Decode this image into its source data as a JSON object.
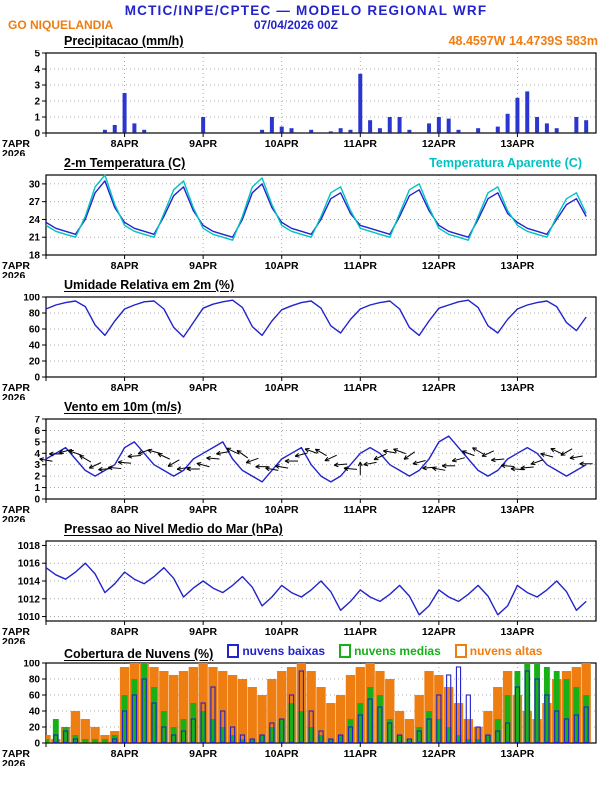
{
  "header": {
    "title": "MCTIC/INPE/CPTEC — MODELO REGIONAL WRF",
    "station": "GO NIQUELANDIA",
    "run": "07/04/2026 00Z",
    "location": "48.4597W 14.4739S 583m"
  },
  "colors": {
    "blue": "#2323cc",
    "orange": "#ee7d12",
    "cyan": "#00c2c2",
    "green": "#17b117",
    "bar_blue": "#2a36cf",
    "axis": "#000000",
    "grid": "#999999"
  },
  "x_axis": {
    "hours_total": 168,
    "step_hours": 3,
    "day_tick_hours": [
      0,
      24,
      48,
      72,
      96,
      120,
      144
    ],
    "day_labels": [
      "7APR",
      "8APR",
      "9APR",
      "10APR",
      "11APR",
      "12APR",
      "13APR"
    ],
    "year_label": "2026"
  },
  "chart_data": [
    {
      "id": "precipitation",
      "type": "bar",
      "title": "Precipitacao (mm/h)",
      "ylim": [
        0,
        5
      ],
      "yticks": [
        0,
        1,
        2,
        3,
        4,
        5
      ],
      "series": [
        {
          "name": "precipitacao",
          "color_key": "bar_blue",
          "values": [
            0,
            0,
            0,
            0,
            0,
            0,
            0.2,
            0.5,
            2.5,
            0.6,
            0.2,
            0,
            0,
            0,
            0,
            0,
            1,
            0,
            0,
            0,
            0,
            0,
            0.2,
            1,
            0.4,
            0.3,
            0,
            0.2,
            0,
            0.1,
            0.3,
            0.2,
            3.7,
            0.8,
            0.3,
            1,
            1,
            0.2,
            0,
            0.6,
            1,
            0.9,
            0.2,
            0,
            0.3,
            0,
            0.4,
            1.2,
            2.2,
            2.6,
            1,
            0.6,
            0.3,
            0,
            1,
            0.8
          ]
        }
      ]
    },
    {
      "id": "temperature",
      "type": "line",
      "title": "2-m Temperatura (C)",
      "legend": "Temperatura Aparente (C)",
      "ylim": [
        18,
        31.5
      ],
      "yticks": [
        18,
        21,
        24,
        27,
        30
      ],
      "series": [
        {
          "name": "temperatura_2m",
          "color_key": "blue",
          "values": [
            23.5,
            22.5,
            22,
            21.5,
            24,
            28.5,
            30.5,
            26,
            23.5,
            22.5,
            22,
            21.5,
            24.5,
            28,
            29.5,
            25.5,
            23,
            22,
            21.5,
            21,
            24,
            28.5,
            30,
            26,
            23.5,
            22.5,
            22,
            21.5,
            24,
            27.5,
            28.5,
            25,
            23,
            22.5,
            22,
            21.5,
            24.5,
            28,
            29,
            25.5,
            23,
            22,
            21.5,
            21,
            24,
            27.5,
            28.5,
            25,
            23.5,
            22.5,
            22,
            21.5,
            24,
            26.5,
            27.5,
            24.5
          ]
        },
        {
          "name": "temperatura_aparente",
          "color_key": "cyan",
          "values": [
            23,
            22,
            21.5,
            21,
            24.5,
            29.5,
            31.5,
            26.5,
            23,
            22,
            21.5,
            21,
            25,
            29,
            30.5,
            26,
            22.5,
            21.5,
            21,
            20.5,
            24.5,
            29.5,
            31,
            26.5,
            23,
            22,
            21.5,
            21,
            24.5,
            28.5,
            29.5,
            25.5,
            22.5,
            22,
            21.5,
            21,
            25,
            29,
            30,
            26,
            22.5,
            21.5,
            21,
            20.5,
            24.5,
            28.5,
            29.5,
            25.5,
            23,
            22,
            21.5,
            21,
            24.5,
            27.5,
            28.5,
            25
          ]
        }
      ]
    },
    {
      "id": "humidity",
      "type": "line",
      "title": "Umidade Relativa em 2m (%)",
      "ylim": [
        0,
        100
      ],
      "yticks": [
        0,
        20,
        40,
        60,
        80,
        100
      ],
      "series": [
        {
          "name": "umidade_relativa_2m",
          "color_key": "blue",
          "values": [
            85,
            90,
            93,
            95,
            88,
            65,
            52,
            70,
            85,
            90,
            94,
            95,
            85,
            62,
            50,
            68,
            86,
            91,
            94,
            96,
            87,
            63,
            52,
            70,
            84,
            89,
            93,
            95,
            86,
            64,
            55,
            72,
            85,
            90,
            93,
            95,
            85,
            62,
            52,
            70,
            86,
            90,
            94,
            96,
            87,
            64,
            55,
            72,
            85,
            90,
            93,
            95,
            88,
            68,
            58,
            75
          ]
        }
      ]
    },
    {
      "id": "wind",
      "type": "line",
      "title": "Vento em 10m (m/s)",
      "ylim": [
        0,
        7
      ],
      "yticks": [
        0,
        1,
        2,
        3,
        4,
        5,
        6,
        7
      ],
      "wind_dirs_deg": [
        170,
        180,
        195,
        160,
        150,
        205,
        185,
        175,
        175,
        185,
        200,
        165,
        155,
        210,
        190,
        180,
        165,
        175,
        190,
        155,
        145,
        200,
        180,
        170,
        170,
        180,
        195,
        160,
        150,
        205,
        185,
        175,
        90,
        190,
        205,
        170,
        160,
        215,
        195,
        185,
        170,
        180,
        195,
        160,
        150,
        205,
        185,
        175,
        175,
        185,
        200,
        165,
        155,
        210,
        190,
        180
      ],
      "series": [
        {
          "name": "vento_10m",
          "color_key": "blue",
          "values": [
            3.5,
            4,
            4.5,
            3.5,
            2.5,
            2,
            2.5,
            3,
            4.5,
            5,
            4,
            3,
            2.5,
            2,
            2.5,
            3.5,
            4,
            4.5,
            5,
            3.5,
            2.5,
            2,
            1.5,
            2.5,
            3.5,
            4,
            4.5,
            3,
            2,
            1.5,
            2,
            3,
            4,
            4.5,
            4,
            3,
            2.5,
            2,
            2.5,
            3.5,
            5,
            5.5,
            4.5,
            3.5,
            2.5,
            2,
            2.5,
            3.5,
            4,
            4.5,
            4,
            3,
            2.5,
            2,
            2.5,
            3
          ]
        }
      ]
    },
    {
      "id": "pressure",
      "type": "line",
      "title": "Pressao ao Nivel Medio do Mar (hPa)",
      "ylim": [
        1009.5,
        1018.5
      ],
      "yticks": [
        1010,
        1012,
        1014,
        1016,
        1018
      ],
      "series": [
        {
          "name": "pressao_nivel_mar",
          "color_key": "blue",
          "values": [
            1015.5,
            1014.7,
            1014.2,
            1015,
            1016,
            1014.8,
            1012.7,
            1013.7,
            1015,
            1014.2,
            1013.7,
            1014.5,
            1015.5,
            1014.3,
            1012.2,
            1013.2,
            1014,
            1013.2,
            1012.7,
            1013.5,
            1014.5,
            1013.3,
            1011.2,
            1012.2,
            1013.5,
            1012.7,
            1012.2,
            1013,
            1014,
            1012.8,
            1010.7,
            1011.7,
            1013,
            1012.2,
            1011.7,
            1012.5,
            1013.5,
            1012.3,
            1010.2,
            1011.2,
            1013,
            1012.2,
            1011.7,
            1012.5,
            1013.5,
            1012.3,
            1010.2,
            1011.2,
            1013.5,
            1012.7,
            1012.2,
            1013,
            1014,
            1012.8,
            1010.7,
            1011.7
          ]
        }
      ]
    },
    {
      "id": "clouds",
      "type": "multibar",
      "title": "Cobertura de Nuvens (%)",
      "ylim": [
        0,
        100
      ],
      "yticks": [
        0,
        20,
        40,
        60,
        80,
        100
      ],
      "legend": [
        {
          "label": "nuvens baixas",
          "color_key": "blue"
        },
        {
          "label": "nuvens medias",
          "color_key": "green"
        },
        {
          "label": "nuvens altas",
          "color_key": "orange"
        }
      ],
      "series": [
        {
          "name": "nuvens_altas",
          "color_key": "orange",
          "values": [
            10,
            5,
            20,
            40,
            30,
            20,
            10,
            15,
            95,
            100,
            100,
            95,
            90,
            85,
            90,
            95,
            100,
            95,
            90,
            85,
            80,
            70,
            60,
            80,
            90,
            95,
            100,
            90,
            70,
            50,
            60,
            85,
            95,
            100,
            90,
            80,
            40,
            30,
            60,
            90,
            85,
            70,
            50,
            30,
            20,
            40,
            70,
            90,
            60,
            40,
            30,
            50,
            80,
            90,
            95,
            100
          ]
        },
        {
          "name": "nuvens_medias",
          "color_key": "green",
          "values": [
            5,
            30,
            20,
            10,
            5,
            5,
            5,
            10,
            60,
            80,
            100,
            70,
            40,
            20,
            30,
            50,
            40,
            30,
            20,
            10,
            5,
            5,
            10,
            20,
            30,
            50,
            40,
            20,
            10,
            5,
            10,
            30,
            50,
            70,
            60,
            30,
            10,
            5,
            20,
            40,
            30,
            20,
            10,
            5,
            5,
            10,
            30,
            60,
            90,
            100,
            100,
            95,
            90,
            80,
            70,
            60
          ]
        },
        {
          "name": "nuvens_baixas",
          "color_key": "blue",
          "outline": true,
          "values": [
            0,
            10,
            15,
            5,
            0,
            0,
            0,
            5,
            40,
            60,
            80,
            50,
            20,
            10,
            15,
            30,
            50,
            70,
            40,
            20,
            10,
            5,
            10,
            25,
            30,
            60,
            90,
            40,
            15,
            5,
            10,
            20,
            35,
            55,
            45,
            25,
            10,
            5,
            15,
            30,
            60,
            85,
            95,
            60,
            20,
            10,
            15,
            25,
            70,
            90,
            80,
            60,
            40,
            30,
            35,
            45
          ]
        }
      ]
    }
  ]
}
